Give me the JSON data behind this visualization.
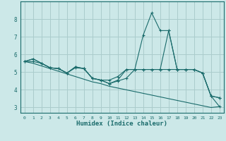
{
  "xlabel": "Humidex (Indice chaleur)",
  "x_values": [
    0,
    1,
    2,
    3,
    4,
    5,
    6,
    7,
    8,
    9,
    10,
    11,
    12,
    13,
    14,
    15,
    16,
    17,
    18,
    19,
    20,
    21,
    22,
    23
  ],
  "line1": [
    5.6,
    5.75,
    5.5,
    5.25,
    5.2,
    4.95,
    5.25,
    5.2,
    4.65,
    4.55,
    4.35,
    4.5,
    4.65,
    5.15,
    7.1,
    8.35,
    7.35,
    7.35,
    5.15,
    5.15,
    5.15,
    4.95,
    3.65,
    3.55
  ],
  "line2": [
    5.6,
    5.75,
    5.5,
    5.25,
    5.2,
    4.95,
    5.3,
    5.2,
    4.65,
    4.55,
    4.55,
    4.75,
    5.15,
    5.15,
    5.15,
    5.15,
    5.15,
    7.35,
    5.15,
    5.15,
    5.15,
    4.95,
    3.65,
    3.55
  ],
  "line3": [
    5.6,
    5.6,
    5.5,
    5.25,
    5.2,
    4.95,
    5.3,
    5.2,
    4.65,
    4.55,
    4.35,
    4.55,
    5.15,
    5.15,
    5.15,
    5.15,
    5.15,
    5.15,
    5.15,
    5.15,
    5.15,
    4.95,
    3.65,
    3.05
  ],
  "line_diagonal": [
    5.6,
    5.5,
    5.35,
    5.2,
    5.05,
    4.9,
    4.75,
    4.6,
    4.45,
    4.35,
    4.2,
    4.1,
    4.0,
    3.9,
    3.8,
    3.7,
    3.6,
    3.5,
    3.4,
    3.3,
    3.2,
    3.1,
    3.0,
    3.05
  ],
  "bg_color": "#cce8e8",
  "grid_color": "#aacccc",
  "line_color": "#1a6b6b",
  "ylim": [
    2.7,
    9.0
  ],
  "xlim": [
    -0.5,
    23.5
  ],
  "yticks": [
    3,
    4,
    5,
    6,
    7,
    8
  ],
  "xticks": [
    0,
    1,
    2,
    3,
    4,
    5,
    6,
    7,
    8,
    9,
    10,
    11,
    12,
    13,
    14,
    15,
    16,
    17,
    18,
    19,
    20,
    21,
    22,
    23
  ]
}
